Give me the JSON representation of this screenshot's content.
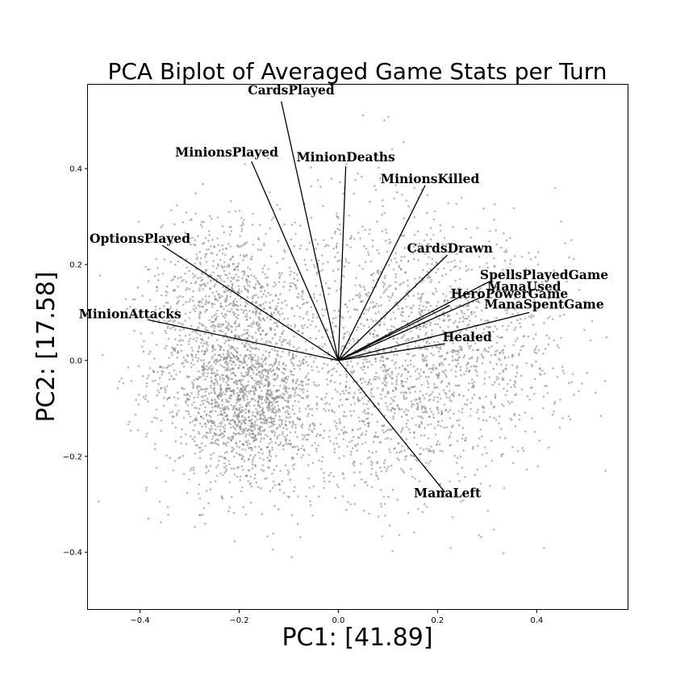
{
  "chart_data": {
    "type": "scatter",
    "subtype": "pca-biplot",
    "title": "PCA Biplot of Averaged Game Stats per Turn",
    "xlabel": "PC1: [41.89]",
    "ylabel": "PC2: [17.58]",
    "xlim": [
      -0.505,
      0.585
    ],
    "ylim": [
      -0.52,
      0.575
    ],
    "grid": false,
    "xticks": [
      -0.4,
      -0.2,
      0.0,
      0.2,
      0.4
    ],
    "xtick_labels": [
      "−0.4",
      "−0.2",
      "0.0",
      "0.2",
      "0.4"
    ],
    "yticks": [
      -0.4,
      -0.2,
      0.0,
      0.2,
      0.4
    ],
    "ytick_labels": [
      "−0.4",
      "−0.2",
      "0.0",
      "0.2",
      "0.4"
    ],
    "scatter": {
      "color": "#808080",
      "description": "dense cloud of projected samples",
      "clusters": [
        {
          "cx": -0.21,
          "cy": -0.02,
          "sx": 0.085,
          "sy": 0.13,
          "weight": 0.3
        },
        {
          "cx": -0.17,
          "cy": -0.1,
          "sx": 0.055,
          "sy": 0.07,
          "weight": 0.14
        },
        {
          "cx": -0.24,
          "cy": 0.13,
          "sx": 0.075,
          "sy": 0.1,
          "weight": 0.1
        },
        {
          "cx": 0.2,
          "cy": 0.02,
          "sx": 0.13,
          "sy": 0.12,
          "weight": 0.32
        },
        {
          "cx": 0.05,
          "cy": -0.14,
          "sx": 0.1,
          "sy": 0.09,
          "weight": 0.09
        },
        {
          "cx": 0.03,
          "cy": 0.2,
          "sx": 0.09,
          "sy": 0.12,
          "weight": 0.05
        }
      ]
    },
    "loadings": [
      {
        "name": "CardsPlayed",
        "x": -0.115,
        "y": 0.54,
        "label_x": -0.095,
        "label_y": 0.555
      },
      {
        "name": "MinionsPlayed",
        "x": -0.175,
        "y": 0.415,
        "label_x": -0.225,
        "label_y": 0.425
      },
      {
        "name": "MinionDeaths",
        "x": 0.015,
        "y": 0.405,
        "label_x": 0.015,
        "label_y": 0.415
      },
      {
        "name": "MinionsKilled",
        "x": 0.175,
        "y": 0.365,
        "label_x": 0.185,
        "label_y": 0.37
      },
      {
        "name": "OptionsPlayed",
        "x": -0.355,
        "y": 0.24,
        "label_x": -0.4,
        "label_y": 0.245
      },
      {
        "name": "CardsDrawn",
        "x": 0.22,
        "y": 0.22,
        "label_x": 0.225,
        "label_y": 0.225
      },
      {
        "name": "SpellsPlayedGame",
        "x": 0.305,
        "y": 0.165,
        "label_x": 0.415,
        "label_y": 0.17
      },
      {
        "name": "ManaUsed",
        "x": 0.295,
        "y": 0.135,
        "label_x": 0.375,
        "label_y": 0.145
      },
      {
        "name": "HeroPowerGame",
        "x": 0.225,
        "y": 0.115,
        "label_x": 0.345,
        "label_y": 0.13
      },
      {
        "name": "ManaSpentGame",
        "x": 0.385,
        "y": 0.1,
        "label_x": 0.415,
        "label_y": 0.108
      },
      {
        "name": "MinionAttacks",
        "x": -0.385,
        "y": 0.085,
        "label_x": -0.42,
        "label_y": 0.088
      },
      {
        "name": "Healed",
        "x": 0.215,
        "y": 0.035,
        "label_x": 0.26,
        "label_y": 0.04
      },
      {
        "name": "ManaLeft",
        "x": 0.215,
        "y": -0.275,
        "label_x": 0.22,
        "label_y": -0.285
      }
    ]
  }
}
